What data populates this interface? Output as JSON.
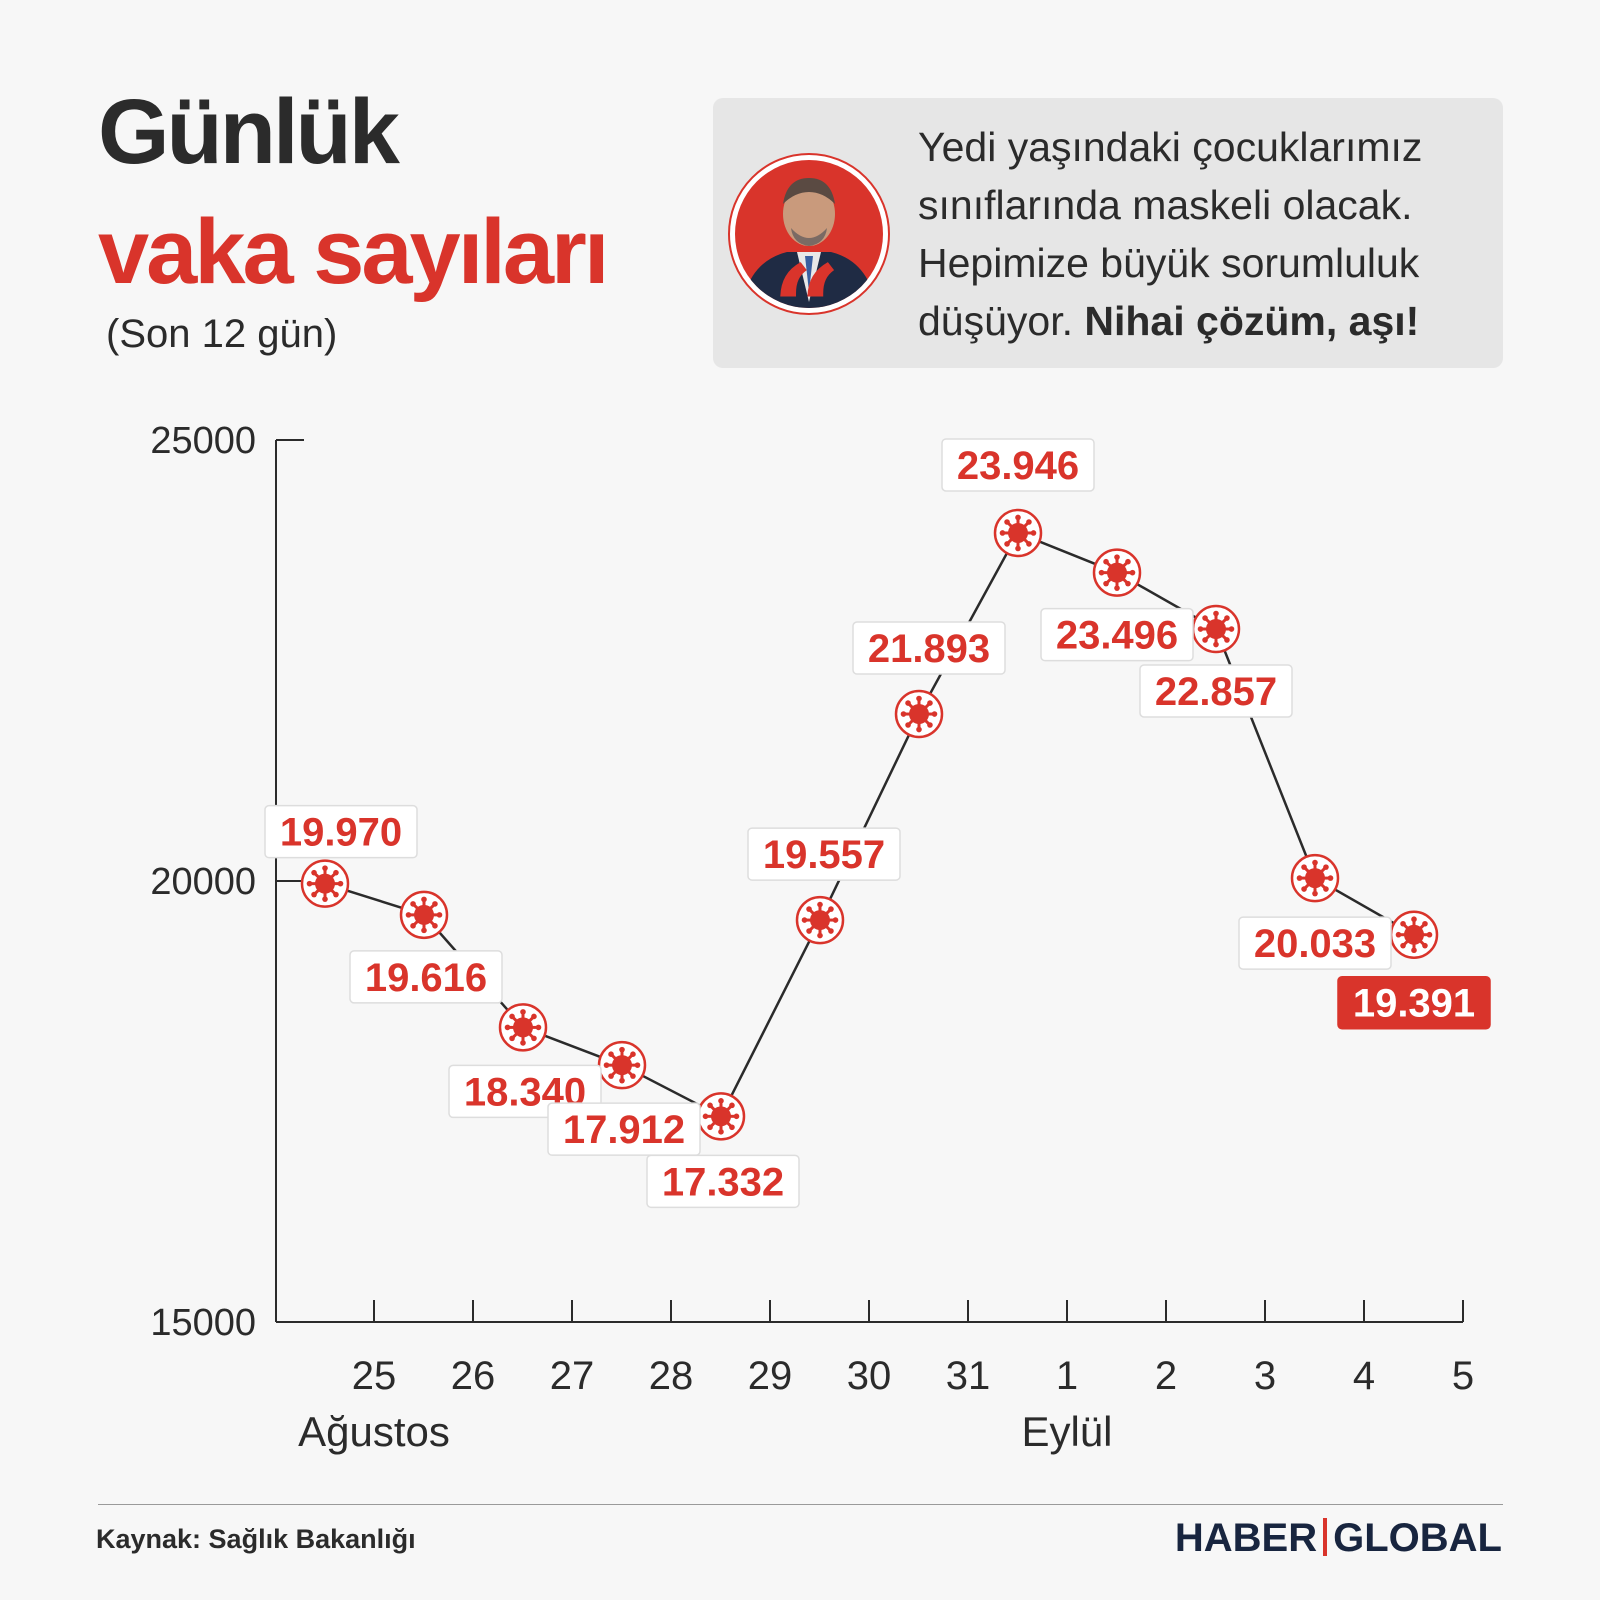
{
  "header": {
    "title_line1": "Günlük",
    "title_line2": "vaka sayıları",
    "subtitle": "(Son 12 gün)"
  },
  "quote": {
    "text_regular": "Yedi yaşındaki çocuklarımız sınıflarında maskeli olacak. Hepimize büyük sorumluluk düşüyor. ",
    "text_bold": "Nihai çözüm, aşı!",
    "quote_mark": "“"
  },
  "footer": {
    "source": "Kaynak: Sağlık Bakanlığı",
    "brand_left": "HABER",
    "brand_right": "GLOBAL"
  },
  "colors": {
    "accent": "#d9342b",
    "dark": "#2b2b2b",
    "brand": "#18253f"
  },
  "chart_data": {
    "type": "line",
    "x": [
      "25",
      "26",
      "27",
      "28",
      "29",
      "30",
      "31",
      "1",
      "2",
      "3",
      "4",
      "5"
    ],
    "month_labels": [
      {
        "label": "Ağustos",
        "at": "25"
      },
      {
        "label": "Eylül",
        "at": "1"
      }
    ],
    "series": [
      {
        "values": [
          19970,
          19616,
          18340,
          17912,
          17332,
          19557,
          21893,
          23946,
          23496,
          22857,
          20033,
          19391
        ],
        "labels": [
          "19.970",
          "19.616",
          "18.340",
          "17.912",
          "17.332",
          "19.557",
          "21.893",
          "23.946",
          "23.496",
          "22.857",
          "20.033",
          "19.391"
        ]
      }
    ],
    "yticks": [
      "25000",
      "20000",
      "15000"
    ],
    "ylim": [
      15000,
      25000
    ],
    "highlight_last": true,
    "marker": "virus-icon"
  }
}
